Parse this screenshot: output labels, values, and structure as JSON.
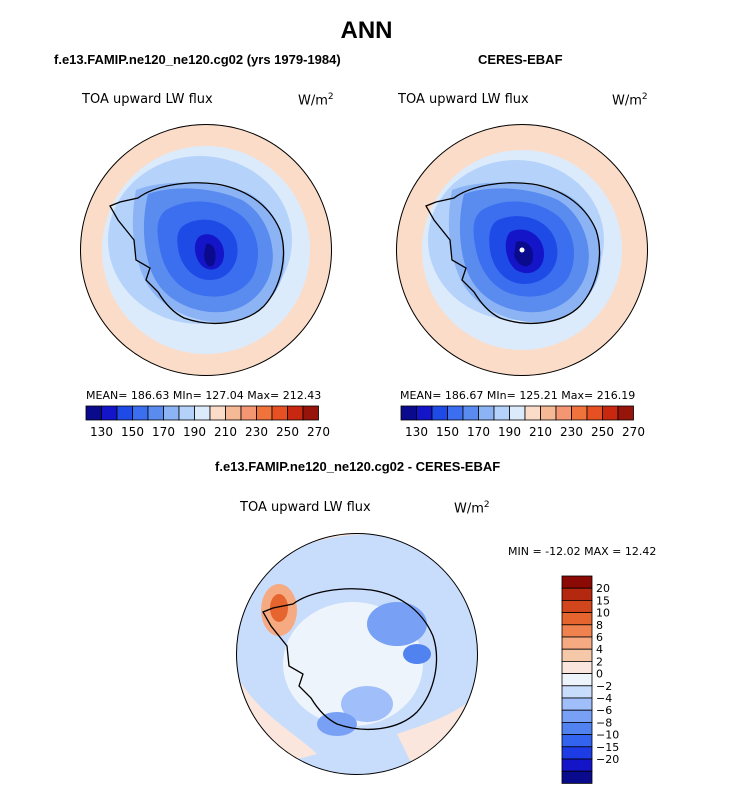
{
  "title": "ANN",
  "colors": {
    "coast": "#000000",
    "abs_palette": [
      "#0a0a8c",
      "#1414c8",
      "#1e4be6",
      "#3c6ef0",
      "#5a8cf0",
      "#8cb4f5",
      "#b4d2fa",
      "#dcebfc",
      "#fadcc8",
      "#f5b996",
      "#f59673",
      "#f0733c",
      "#e65023",
      "#c8280f",
      "#96140a"
    ],
    "diff_palette": [
      "#0a0a8c",
      "#1414c8",
      "#1e3ce6",
      "#3264f0",
      "#5082f0",
      "#78a0f5",
      "#a0befa",
      "#c8dcfc",
      "#eef4fc",
      "#fae6dc",
      "#f5c8aa",
      "#f5aa82",
      "#f08250",
      "#e6642d",
      "#d2461e",
      "#b4280f",
      "#8c0a05"
    ]
  },
  "panels": [
    {
      "header": "f.e13.FAMIP.ne120_ne120.cg02 (yrs 1979-1984)",
      "field": "TOA upward LW flux",
      "units_base": "W/m",
      "units_exp": "2",
      "stats": "MEAN= 186.63   MIn= 127.04   Max= 212.43"
    },
    {
      "header": "CERES-EBAF",
      "field": "TOA upward LW flux",
      "units_base": "W/m",
      "units_exp": "2",
      "stats": "MEAN= 186.67   MIn= 125.21   Max= 216.19"
    }
  ],
  "diff_panel": {
    "header": "f.e13.FAMIP.ne120_ne120.cg02 - CERES-EBAF",
    "field": "TOA upward LW flux",
    "units_base": "W/m",
    "units_exp": "2",
    "minmax": "MIN = -12.02 MAX =  12.42"
  },
  "chart_data": [
    {
      "type": "heatmap",
      "projection": "south polar stereographic",
      "title": "f.e13.FAMIP.ne120_ne120.cg02 (yrs 1979-1984)",
      "variable": "TOA upward LW flux",
      "units": "W/m2",
      "mean": 186.63,
      "min": 127.04,
      "max": 212.43,
      "colorbar_levels": [
        130,
        140,
        150,
        160,
        170,
        180,
        190,
        200,
        210,
        220,
        230,
        240,
        250,
        260,
        270
      ],
      "colorbar_labels": [
        "130",
        "150",
        "170",
        "190",
        "210",
        "230",
        "250",
        "270"
      ]
    },
    {
      "type": "heatmap",
      "projection": "south polar stereographic",
      "title": "CERES-EBAF",
      "variable": "TOA upward LW flux",
      "units": "W/m2",
      "mean": 186.67,
      "min": 125.21,
      "max": 216.19,
      "colorbar_levels": [
        130,
        140,
        150,
        160,
        170,
        180,
        190,
        200,
        210,
        220,
        230,
        240,
        250,
        260,
        270
      ],
      "colorbar_labels": [
        "130",
        "150",
        "170",
        "190",
        "210",
        "230",
        "250",
        "270"
      ]
    },
    {
      "type": "heatmap",
      "projection": "south polar stereographic",
      "title": "f.e13.FAMIP.ne120_ne120.cg02 - CERES-EBAF",
      "variable": "TOA upward LW flux",
      "units": "W/m2",
      "min": -12.02,
      "max": 12.42,
      "colorbar_levels": [
        -20,
        -15,
        -10,
        -8,
        -6,
        -4,
        -2,
        0,
        2,
        4,
        6,
        8,
        10,
        15,
        20
      ],
      "colorbar_labels": [
        "20",
        "15",
        "10",
        "8",
        "6",
        "4",
        "2",
        "0",
        "−2",
        "−4",
        "−6",
        "−8",
        "−10",
        "−15",
        "−20"
      ]
    }
  ]
}
